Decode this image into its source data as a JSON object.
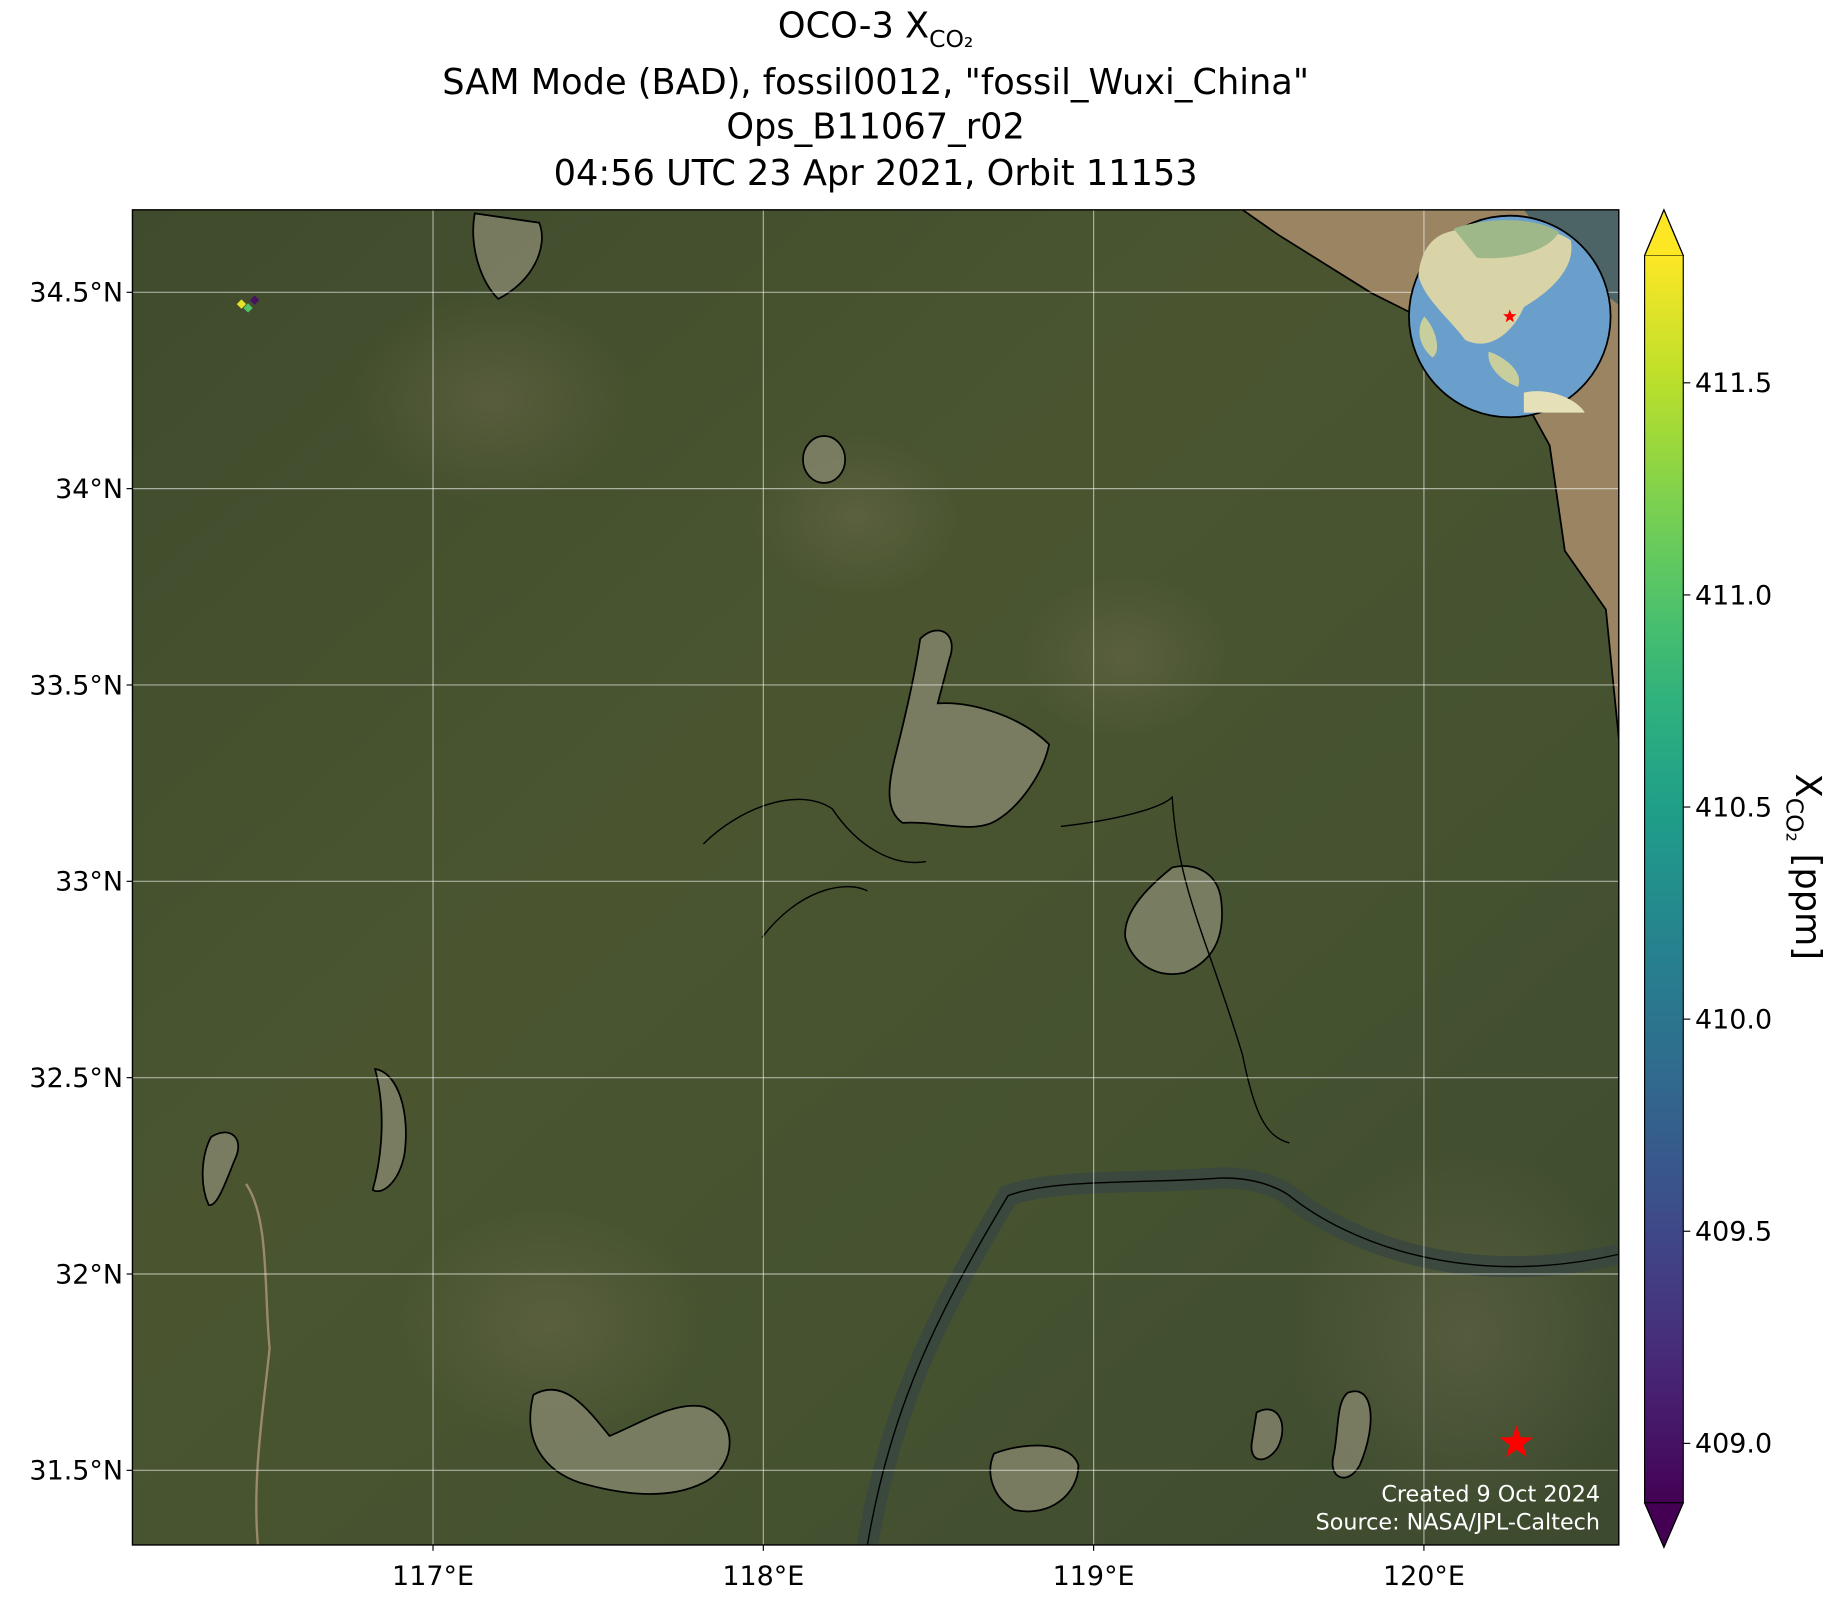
{
  "chart_data": {
    "type": "scatter",
    "title": {
      "text": "OCO-3 X",
      "subscript": "CO₂"
    },
    "subtitles": [
      "SAM Mode (BAD), fossil0012, \"fossil_Wuxi_China\"",
      "Ops_B11067_r02",
      "04:56 UTC 23 Apr 2021, Orbit 11153"
    ],
    "x": [
      116.42,
      116.44,
      116.46
    ],
    "y": [
      34.47,
      34.46,
      34.48
    ],
    "values": [
      411.7,
      411.0,
      409.0
    ],
    "xlim": [
      116.09,
      120.59
    ],
    "ylim": [
      31.31,
      34.71
    ],
    "xticks": [
      {
        "value": 117,
        "label": "117°E"
      },
      {
        "value": 118,
        "label": "118°E"
      },
      {
        "value": 119,
        "label": "119°E"
      },
      {
        "value": 120,
        "label": "120°E"
      }
    ],
    "yticks": [
      {
        "value": 31.5,
        "label": "31.5°N"
      },
      {
        "value": 32,
        "label": "32°N"
      },
      {
        "value": 32.5,
        "label": "32.5°N"
      },
      {
        "value": 33,
        "label": "33°N"
      },
      {
        "value": 33.5,
        "label": "33.5°N"
      },
      {
        "value": 34,
        "label": "34°N"
      },
      {
        "value": 34.5,
        "label": "34.5°N"
      }
    ],
    "grid": true,
    "colormap": "viridis",
    "colorbar": {
      "clim": [
        408.86,
        411.8
      ],
      "ticks": [
        {
          "value": 409,
          "label": "409.0"
        },
        409.5,
        {
          "value": 410,
          "label": "410.0"
        },
        410.5,
        {
          "value": 411,
          "label": "411.0"
        },
        411.5
      ],
      "label": "X",
      "label_subscript": "CO₂",
      "label_units": "[ppm]"
    },
    "target": {
      "lon": 120.28,
      "lat": 31.57,
      "color": "#ff0000"
    },
    "credits": [
      "Created 9 Oct 2024",
      "Source: NASA/JPL-Caltech"
    ]
  }
}
